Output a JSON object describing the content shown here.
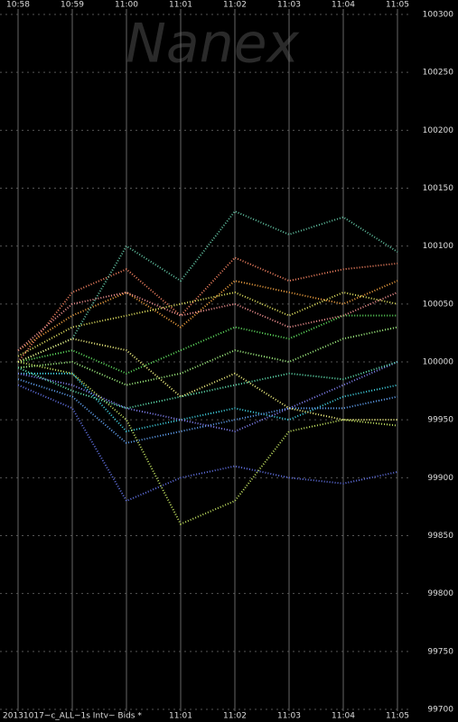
{
  "chart_data": {
    "type": "line",
    "title": "20131017~c_ALL~1s Intv~ Bids *",
    "watermark": "Nanex",
    "categories": [
      "10:58",
      "10:59",
      "11:00",
      "11:01",
      "11:02",
      "11:03",
      "11:04",
      "11:05"
    ],
    "ylim": [
      99700,
      100300
    ],
    "yticks": [
      99700,
      99750,
      99800,
      99850,
      99900,
      99950,
      100000,
      100050,
      100100,
      100150,
      100200,
      100250,
      100300
    ],
    "grid": true,
    "series": [
      {
        "color": "#f08060",
        "values": [
          100000,
          100060,
          100080,
          100040,
          100090,
          100070,
          100080,
          100085
        ]
      },
      {
        "color": "#f0a040",
        "values": [
          100010,
          100040,
          100060,
          100030,
          100070,
          100060,
          100050,
          100070
        ]
      },
      {
        "color": "#e0e060",
        "values": [
          100005,
          100030,
          100040,
          100050,
          100060,
          100040,
          100060,
          100050
        ]
      },
      {
        "color": "#60c0a0",
        "values": [
          100000,
          100020,
          100100,
          100070,
          100130,
          100110,
          100125,
          100095
        ]
      },
      {
        "color": "#60e060",
        "values": [
          100000,
          100010,
          99990,
          100010,
          100030,
          100020,
          100040,
          100040
        ]
      },
      {
        "color": "#a0f080",
        "values": [
          99995,
          100000,
          99980,
          99990,
          100010,
          100000,
          100020,
          100030
        ]
      },
      {
        "color": "#40d0e0",
        "values": [
          99990,
          99990,
          99940,
          99950,
          99960,
          99950,
          99970,
          99980
        ]
      },
      {
        "color": "#60a0f0",
        "values": [
          99985,
          99970,
          99930,
          99940,
          99950,
          99960,
          99960,
          99970
        ]
      },
      {
        "color": "#6070e0",
        "values": [
          99980,
          99960,
          99880,
          99900,
          99910,
          99900,
          99895,
          99905
        ]
      },
      {
        "color": "#8080f0",
        "values": [
          99990,
          99980,
          99960,
          99950,
          99940,
          99960,
          99980,
          100000
        ]
      },
      {
        "color": "#c0e060",
        "values": [
          100000,
          99990,
          99950,
          99860,
          99880,
          99940,
          99950,
          99945
        ]
      },
      {
        "color": "#f09090",
        "values": [
          100010,
          100050,
          100060,
          100040,
          100050,
          100030,
          100040,
          100060
        ]
      },
      {
        "color": "#60e0b0",
        "values": [
          99995,
          99975,
          99960,
          99970,
          99980,
          99990,
          99985,
          100000
        ]
      },
      {
        "color": "#f0f080",
        "values": [
          100000,
          100020,
          100010,
          99970,
          99990,
          99960,
          99950,
          99950
        ]
      }
    ]
  }
}
